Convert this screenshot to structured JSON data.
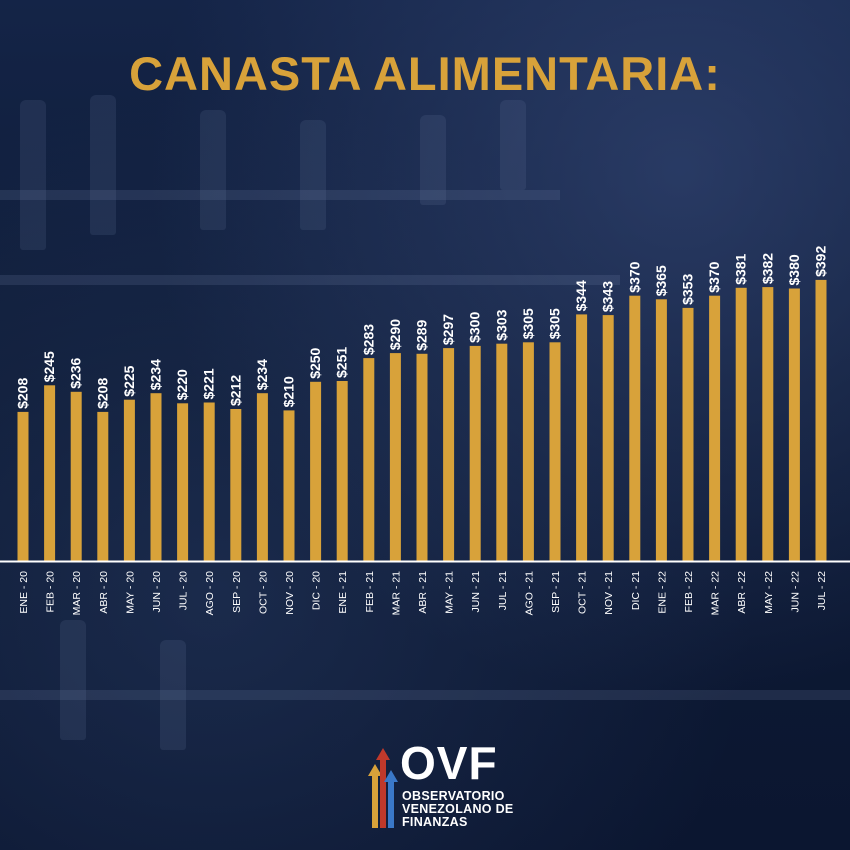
{
  "title": "CANASTA ALIMENTARIA:",
  "colors": {
    "bar": "#d8a23a",
    "title": "#d8a23a",
    "label": "#ffffff",
    "baseline": "#ffffff",
    "logo_bar_1": "#d8a23a",
    "logo_bar_2": "#c0392b",
    "logo_bar_3": "#3a78c8"
  },
  "logo": {
    "name": "OVF",
    "line1": "OBSERVATORIO",
    "line2": "VENEZOLANO DE",
    "line3": "FINANZAS"
  },
  "chart_data": {
    "type": "bar",
    "title": "CANASTA ALIMENTARIA:",
    "categories": [
      "ENE - 20",
      "FEB - 20",
      "MAR - 20",
      "ABR - 20",
      "MAY - 20",
      "JUN - 20",
      "JUL - 20",
      "AGO - 20",
      "SEP - 20",
      "OCT - 20",
      "NOV - 20",
      "DIC - 20",
      "ENE - 21",
      "FEB - 21",
      "MAR - 21",
      "ABR - 21",
      "MAY - 21",
      "JUN - 21",
      "JUL - 21",
      "AGO - 21",
      "SEP - 21",
      "OCT - 21",
      "NOV - 21",
      "DIC - 21",
      "ENE - 22",
      "FEB - 22",
      "MAR - 22",
      "ABR - 22",
      "MAY - 22",
      "JUN - 22",
      "JUL - 22"
    ],
    "values": [
      208,
      245,
      236,
      208,
      225,
      234,
      220,
      221,
      212,
      234,
      210,
      250,
      251,
      283,
      290,
      289,
      297,
      300,
      303,
      305,
      305,
      344,
      343,
      370,
      365,
      353,
      370,
      381,
      382,
      380,
      392
    ],
    "value_labels": [
      "$208",
      "$245",
      "$236",
      "$208",
      "$225",
      "$234",
      "$220",
      "$221",
      "$212",
      "$234",
      "$210",
      "$250",
      "$251",
      "$283",
      "$290",
      "$289",
      "$297",
      "$300",
      "$303",
      "$305",
      "$305",
      "$344",
      "$343",
      "$370",
      "$365",
      "$353",
      "$370",
      "$381",
      "$382",
      "$380",
      "$392"
    ],
    "ylim": [
      0,
      400
    ],
    "xlabel": "",
    "ylabel": "",
    "grid": false,
    "legend": "none"
  }
}
